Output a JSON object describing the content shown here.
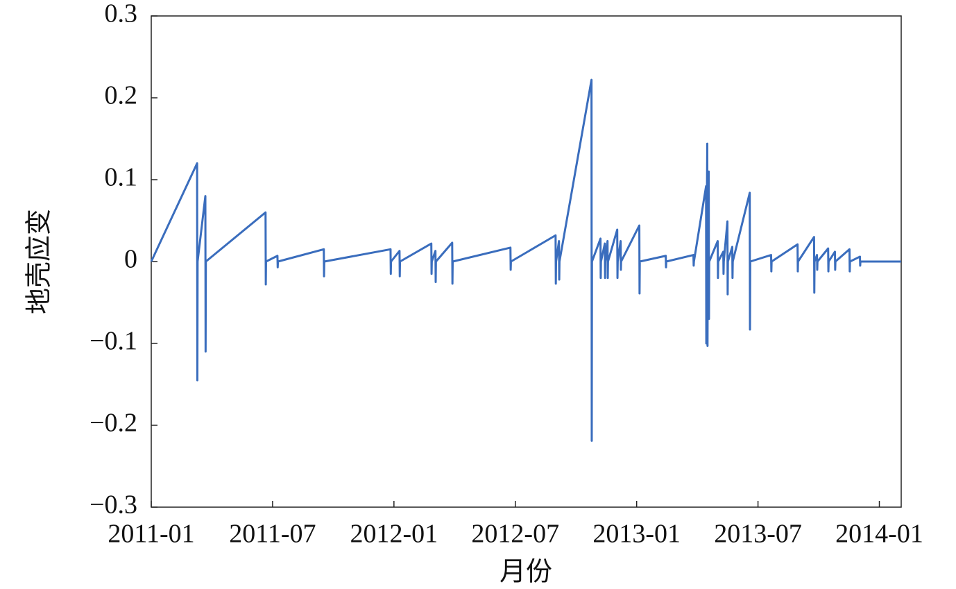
{
  "chart_data": {
    "type": "line",
    "xlabel": "月份",
    "ylabel": "地壳应变",
    "color": "#3a6dbd",
    "xlim": [
      2011,
      2014.09
    ],
    "ylim": [
      -0.3,
      0.3
    ],
    "xticks": [
      {
        "value": 2011,
        "label": "2011-01"
      },
      {
        "value": 2011.5,
        "label": "2011-07"
      },
      {
        "value": 2012,
        "label": "2012-01"
      },
      {
        "value": 2012.5,
        "label": "2012-07"
      },
      {
        "value": 2013,
        "label": "2013-01"
      },
      {
        "value": 2013.5,
        "label": "2013-07"
      },
      {
        "value": 2014,
        "label": "2014-01"
      }
    ],
    "yticks": [
      {
        "value": -0.3,
        "label": "−0.3"
      },
      {
        "value": -0.2,
        "label": "−0.2"
      },
      {
        "value": -0.1,
        "label": "−0.1"
      },
      0,
      0.1,
      0.2,
      0.3
    ],
    "x": [
      2011,
      2011.189,
      2011.19,
      2011.191,
      2011.223,
      2011.224,
      2011.225,
      2011.471,
      2011.472,
      2011.473,
      2011.52,
      2011.521,
      2011.522,
      2011.711,
      2011.712,
      2011.713,
      2011.986,
      2011.987,
      2011.988,
      2012.023,
      2012.024,
      2012.025,
      2012.154,
      2012.155,
      2012.156,
      2012.171,
      2012.172,
      2012.173,
      2012.24,
      2012.241,
      2012.242,
      2012.48,
      2012.481,
      2012.482,
      2012.666,
      2012.667,
      2012.668,
      2012.68,
      2012.681,
      2012.682,
      2012.814,
      2012.815,
      2012.816,
      2012.851,
      2012.852,
      2012.853,
      2012.869,
      2012.87,
      2012.871,
      2012.88,
      2012.881,
      2012.882,
      2012.92,
      2012.921,
      2012.922,
      2012.934,
      2012.935,
      2012.936,
      2013.011,
      2013.012,
      2013.013,
      2013.12,
      2013.121,
      2013.122,
      2013.234,
      2013.235,
      2013.236,
      2013.286,
      2013.287,
      2013.288,
      2013.291,
      2013.292,
      2013.293,
      2013.297,
      2013.298,
      2013.299,
      2013.334,
      2013.335,
      2013.336,
      2013.357,
      2013.358,
      2013.359,
      2013.374,
      2013.375,
      2013.376,
      2013.394,
      2013.395,
      2013.396,
      2013.466,
      2013.467,
      2013.468,
      2013.554,
      2013.555,
      2013.556,
      2013.663,
      2013.664,
      2013.665,
      2013.731,
      2013.732,
      2013.733,
      2013.743,
      2013.744,
      2013.745,
      2013.789,
      2013.79,
      2013.791,
      2013.817,
      2013.818,
      2013.819,
      2013.877,
      2013.878,
      2013.879,
      2013.92,
      2013.921,
      2013.922,
      2014.09
    ],
    "values": [
      0,
      0.12,
      -0.145,
      0,
      0.08,
      -0.11,
      0,
      0.06,
      -0.028,
      0,
      0.007,
      -0.007,
      0,
      0.015,
      -0.018,
      0,
      0.015,
      -0.015,
      0,
      0.013,
      -0.018,
      0,
      0.022,
      -0.015,
      0,
      0.013,
      -0.025,
      0,
      0.023,
      -0.027,
      0,
      0.017,
      -0.01,
      0,
      0.032,
      -0.027,
      0,
      0.025,
      -0.022,
      0,
      0.222,
      -0.219,
      0,
      0.028,
      -0.02,
      0,
      0.022,
      -0.02,
      0,
      0.025,
      -0.02,
      0,
      0.039,
      -0.02,
      0,
      0.025,
      -0.01,
      0,
      0.044,
      -0.039,
      0,
      0.007,
      -0.007,
      0,
      0.008,
      -0.005,
      0,
      0.092,
      -0.1,
      0,
      0.144,
      -0.103,
      0,
      0.11,
      -0.07,
      0,
      0.025,
      -0.02,
      0,
      0.012,
      -0.015,
      0,
      0.049,
      -0.04,
      0,
      0.018,
      -0.02,
      0,
      0.084,
      -0.083,
      0,
      0.008,
      -0.012,
      0,
      0.021,
      -0.012,
      0,
      0.03,
      -0.038,
      0,
      0.008,
      -0.01,
      0,
      0.016,
      -0.012,
      0,
      0.012,
      -0.01,
      0,
      0.015,
      -0.012,
      0,
      0.006,
      -0.005,
      0,
      0
    ]
  }
}
